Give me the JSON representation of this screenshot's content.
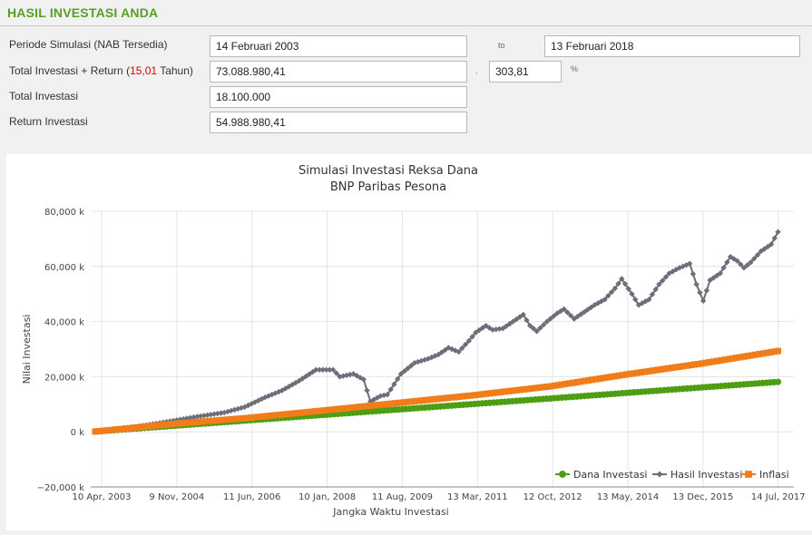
{
  "section": {
    "title": "HASIL INVESTASI ANDA"
  },
  "form": {
    "periode_label": "Periode Simulasi (NAB Tersedia)",
    "periode_start": "14 Februari 2003",
    "to_label": "to",
    "periode_end": "13 Februari 2018",
    "total_label_prefix": "Total Investasi + Return (",
    "total_label_years": "15,01",
    "total_label_suffix": " Tahun)",
    "total_value": "73.088.980,41",
    "dot_separator": ".",
    "return_percent": "303,81",
    "percent_sign": "%",
    "investasi_label": "Total Investasi",
    "investasi_value": "18.100.000",
    "return_label": "Return Investasi",
    "return_value": "54.988.980,41"
  },
  "colors": {
    "dana": "#4d9e12",
    "hasil": "#6e6e7a",
    "inflasi": "#f07d1a",
    "title_green": "#55a025"
  },
  "chart_data": {
    "type": "line",
    "title": "Simulasi Investasi Reksa Dana",
    "subtitle": "BNP Paribas Pesona",
    "xlabel": "Jangka Waktu Investasi",
    "ylabel": "Nilai Investasi",
    "ylim": [
      -20000,
      80000
    ],
    "y_ticks": [
      "−20,000 k",
      "0 k",
      "20,000 k",
      "40,000 k",
      "60,000 k",
      "80,000 k"
    ],
    "y_tick_values": [
      -20000,
      0,
      20000,
      40000,
      60000,
      80000
    ],
    "x_ticks": [
      "10 Apr, 2003",
      "9 Nov, 2004",
      "11 Jun, 2006",
      "10 Jan, 2008",
      "11 Aug, 2009",
      "13 Mar, 2011",
      "12 Oct, 2012",
      "13 May, 2014",
      "13 Dec, 2015",
      "14 Jul, 2017"
    ],
    "grid": true,
    "legend": "bottom-right",
    "x_unit": "month",
    "x_start": "Apr 2003",
    "series": [
      {
        "name": "Dana Investasi",
        "shape": "circle",
        "points": [
          [
            0,
            100
          ],
          [
            180,
            18100
          ]
        ]
      },
      {
        "name": "Hasil Investasi",
        "shape": "diamond",
        "points": [
          [
            0,
            100
          ],
          [
            10,
            1500
          ],
          [
            19,
            3200
          ],
          [
            30,
            5500
          ],
          [
            38,
            7000
          ],
          [
            44,
            9000
          ],
          [
            50,
            12500
          ],
          [
            55,
            15000
          ],
          [
            60,
            18500
          ],
          [
            65,
            22500
          ],
          [
            70,
            22500
          ],
          [
            72,
            20000
          ],
          [
            76,
            21000
          ],
          [
            79,
            19000
          ],
          [
            81,
            11000
          ],
          [
            84,
            13000
          ],
          [
            86,
            13500
          ],
          [
            90,
            21000
          ],
          [
            94,
            25000
          ],
          [
            98,
            26500
          ],
          [
            101,
            28000
          ],
          [
            104,
            30500
          ],
          [
            107,
            29000
          ],
          [
            110,
            33000
          ],
          [
            112,
            36000
          ],
          [
            115,
            38500
          ],
          [
            117,
            37000
          ],
          [
            120,
            37500
          ],
          [
            123,
            40000
          ],
          [
            126,
            42500
          ],
          [
            128,
            38500
          ],
          [
            130,
            36500
          ],
          [
            133,
            40000
          ],
          [
            136,
            43000
          ],
          [
            138,
            44500
          ],
          [
            141,
            41000
          ],
          [
            144,
            43500
          ],
          [
            147,
            46000
          ],
          [
            150,
            48000
          ],
          [
            153,
            52000
          ],
          [
            155,
            55500
          ],
          [
            158,
            50000
          ],
          [
            160,
            46000
          ],
          [
            163,
            48000
          ],
          [
            166,
            53500
          ],
          [
            169,
            57500
          ],
          [
            172,
            59500
          ],
          [
            175,
            61000
          ],
          [
            177,
            53500
          ],
          [
            179,
            47500
          ],
          [
            181,
            55000
          ],
          [
            184,
            57500
          ],
          [
            187,
            63500
          ],
          [
            189,
            62000
          ],
          [
            191,
            59500
          ],
          [
            193,
            61500
          ],
          [
            196,
            65500
          ],
          [
            199,
            68000
          ],
          [
            201,
            72500
          ]
        ]
      },
      {
        "name": "Inflasi",
        "shape": "square",
        "points": [
          [
            0,
            100
          ],
          [
            20,
            2800
          ],
          [
            40,
            5000
          ],
          [
            60,
            7700
          ],
          [
            80,
            10500
          ],
          [
            100,
            13300
          ],
          [
            120,
            16500
          ],
          [
            140,
            20800
          ],
          [
            160,
            24800
          ],
          [
            180,
            29300
          ]
        ]
      }
    ]
  }
}
